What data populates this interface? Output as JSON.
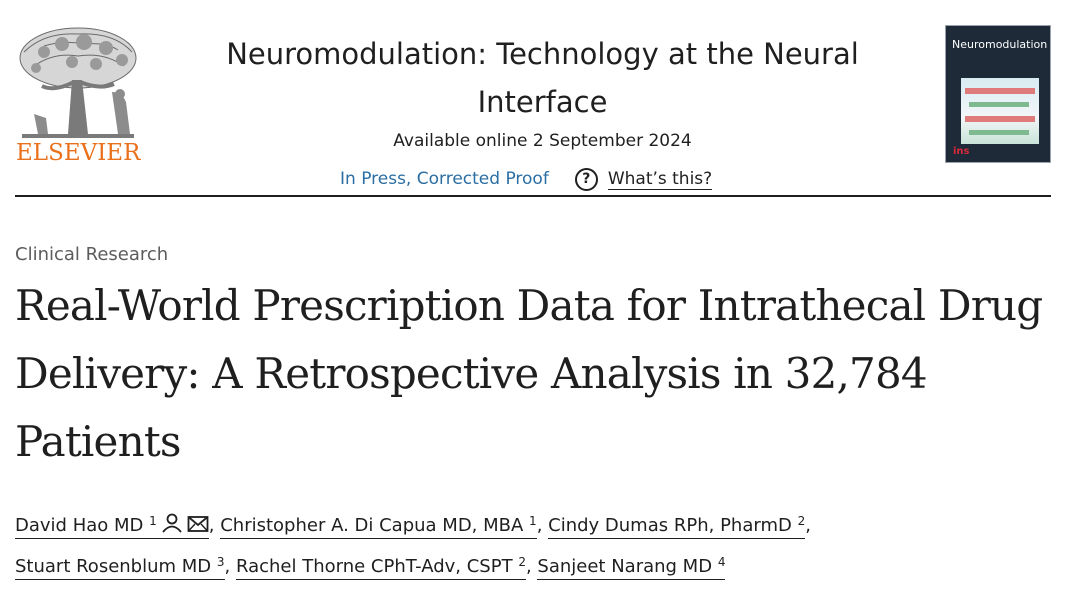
{
  "publisher": {
    "wordmark": "ELSEVIER",
    "logo_icon": "elsevier-tree-icon",
    "accent_color": "#e9711c"
  },
  "journal": {
    "title": "Neuromodulation: Technology at the Neural Interface",
    "available_online": "Available online 2 September 2024",
    "status_link": "In Press, Corrected Proof",
    "help_label": "What’s this?",
    "cover": {
      "title": "Neuromodulation",
      "badge": "ins"
    }
  },
  "article": {
    "section": "Clinical Research",
    "title": "Real-World Prescription Data for Intrathecal Drug Delivery: A Retrospective Analysis in 32,784 Patients",
    "authors": [
      {
        "name": "David Hao MD",
        "affil": "1",
        "icons": [
          "person-icon",
          "mail-icon"
        ]
      },
      {
        "name": "Christopher A. Di Capua MD, MBA",
        "affil": "1"
      },
      {
        "name": "Cindy Dumas RPh, PharmD",
        "affil": "2"
      },
      {
        "name": "Stuart Rosenblum MD",
        "affil": "3"
      },
      {
        "name": "Rachel Thorne CPhT-Adv, CSPT",
        "affil": "2"
      },
      {
        "name": "Sanjeet Narang MD",
        "affil": "4"
      }
    ]
  }
}
